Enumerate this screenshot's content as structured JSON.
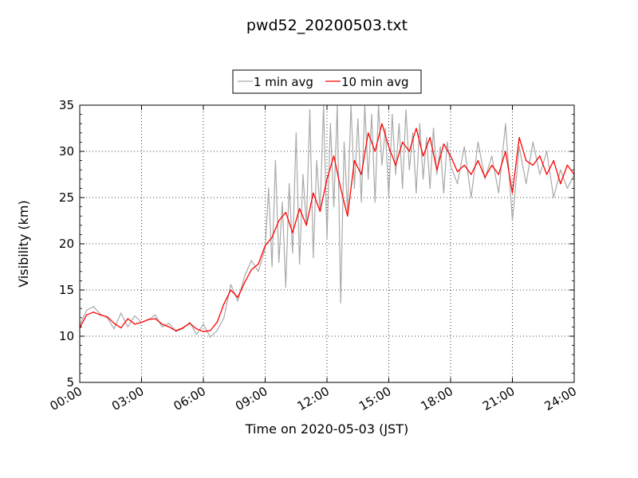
{
  "chart_data": {
    "type": "line",
    "title": "pwd52_20200503.txt",
    "xlabel": "Time on 2020-05-03 (JST)",
    "ylabel": "Visibility (km)",
    "xlim": [
      "00:00",
      "24:00"
    ],
    "ylim": [
      5,
      35
    ],
    "xticks": [
      "00:00",
      "03:00",
      "06:00",
      "09:00",
      "12:00",
      "15:00",
      "18:00",
      "21:00",
      "24:00"
    ],
    "yticks": [
      5,
      10,
      15,
      20,
      25,
      30,
      35
    ],
    "grid": true,
    "legend_position": "top-center",
    "series": [
      {
        "name": "1 min avg",
        "color": "#a9a9a9",
        "x": [
          "00:00",
          "00:20",
          "00:40",
          "01:00",
          "01:20",
          "01:40",
          "02:00",
          "02:20",
          "02:40",
          "03:00",
          "03:20",
          "03:40",
          "04:00",
          "04:20",
          "04:40",
          "05:00",
          "05:20",
          "05:40",
          "06:00",
          "06:20",
          "06:40",
          "07:00",
          "07:20",
          "07:40",
          "08:00",
          "08:20",
          "08:40",
          "09:00",
          "09:10",
          "09:20",
          "09:30",
          "09:40",
          "09:50",
          "10:00",
          "10:10",
          "10:20",
          "10:30",
          "10:40",
          "10:50",
          "11:00",
          "11:10",
          "11:20",
          "11:30",
          "11:40",
          "11:50",
          "12:00",
          "12:10",
          "12:20",
          "12:30",
          "12:40",
          "12:50",
          "13:00",
          "13:10",
          "13:20",
          "13:30",
          "13:40",
          "13:50",
          "14:00",
          "14:10",
          "14:20",
          "14:30",
          "14:40",
          "14:50",
          "15:00",
          "15:10",
          "15:20",
          "15:30",
          "15:40",
          "15:50",
          "16:00",
          "16:10",
          "16:20",
          "16:30",
          "16:40",
          "16:50",
          "17:00",
          "17:10",
          "17:20",
          "17:30",
          "17:40",
          "17:50",
          "18:00",
          "18:20",
          "18:40",
          "19:00",
          "19:20",
          "19:40",
          "20:00",
          "20:20",
          "20:40",
          "21:00",
          "21:20",
          "21:40",
          "22:00",
          "22:20",
          "22:40",
          "23:00",
          "23:20",
          "23:40",
          "24:00"
        ],
        "y": [
          11.2,
          12.8,
          13.2,
          12.4,
          12.0,
          10.8,
          12.5,
          11.0,
          12.2,
          11.5,
          11.8,
          12.3,
          11.0,
          11.4,
          10.5,
          10.8,
          11.5,
          10.2,
          11.3,
          9.9,
          10.6,
          12.0,
          15.6,
          13.8,
          16.5,
          18.2,
          17.0,
          19.5,
          26.0,
          17.5,
          29.0,
          18.0,
          24.5,
          15.3,
          26.5,
          19.0,
          32.0,
          17.8,
          27.5,
          22.0,
          34.5,
          18.5,
          29.0,
          23.5,
          35.0,
          20.5,
          33.0,
          24.0,
          35.0,
          13.6,
          31.0,
          23.5,
          35.0,
          26.0,
          33.5,
          24.5,
          35.0,
          27.0,
          34.0,
          24.5,
          35.0,
          28.5,
          32.5,
          25.0,
          34.0,
          27.5,
          33.0,
          26.0,
          34.5,
          28.0,
          32.0,
          25.5,
          33.0,
          27.0,
          31.5,
          26.0,
          32.5,
          27.5,
          30.5,
          25.5,
          31.0,
          28.5,
          26.5,
          30.5,
          25.0,
          31.0,
          27.0,
          29.5,
          25.5,
          33.0,
          22.5,
          30.5,
          26.5,
          31.0,
          27.5,
          30.0,
          25.0,
          28.0,
          26.0,
          27.5
        ]
      },
      {
        "name": "10 min avg",
        "color": "#ff0000",
        "x": [
          "00:00",
          "00:20",
          "00:40",
          "01:00",
          "01:20",
          "01:40",
          "02:00",
          "02:20",
          "02:40",
          "03:00",
          "03:20",
          "03:40",
          "04:00",
          "04:20",
          "04:40",
          "05:00",
          "05:20",
          "05:40",
          "06:00",
          "06:20",
          "06:40",
          "07:00",
          "07:20",
          "07:40",
          "08:00",
          "08:20",
          "08:40",
          "09:00",
          "09:20",
          "09:40",
          "10:00",
          "10:20",
          "10:40",
          "11:00",
          "11:20",
          "11:40",
          "12:00",
          "12:20",
          "12:40",
          "13:00",
          "13:20",
          "13:40",
          "14:00",
          "14:20",
          "14:40",
          "15:00",
          "15:20",
          "15:40",
          "16:00",
          "16:20",
          "16:40",
          "17:00",
          "17:20",
          "17:40",
          "18:00",
          "18:20",
          "18:40",
          "19:00",
          "19:20",
          "19:40",
          "20:00",
          "20:20",
          "20:40",
          "21:00",
          "21:20",
          "21:40",
          "22:00",
          "22:20",
          "22:40",
          "23:00",
          "23:20",
          "23:40",
          "24:00"
        ],
        "y": [
          10.9,
          12.3,
          12.6,
          12.3,
          12.1,
          11.4,
          10.9,
          11.9,
          11.3,
          11.5,
          11.8,
          11.9,
          11.3,
          11.0,
          10.6,
          10.9,
          11.4,
          10.8,
          10.5,
          10.6,
          11.5,
          13.5,
          15.0,
          14.2,
          15.8,
          17.2,
          17.8,
          19.8,
          20.7,
          22.5,
          23.4,
          21.2,
          23.8,
          22.0,
          25.5,
          23.5,
          27.0,
          29.5,
          26.0,
          23.0,
          29.0,
          27.5,
          32.0,
          30.0,
          33.0,
          30.5,
          28.5,
          31.0,
          30.0,
          32.5,
          29.5,
          31.5,
          28.0,
          30.8,
          29.5,
          27.8,
          28.5,
          27.5,
          29.0,
          27.2,
          28.5,
          27.5,
          30.0,
          25.5,
          31.5,
          29.0,
          28.5,
          29.5,
          27.5,
          29.0,
          26.5,
          28.5,
          27.5
        ]
      }
    ]
  }
}
